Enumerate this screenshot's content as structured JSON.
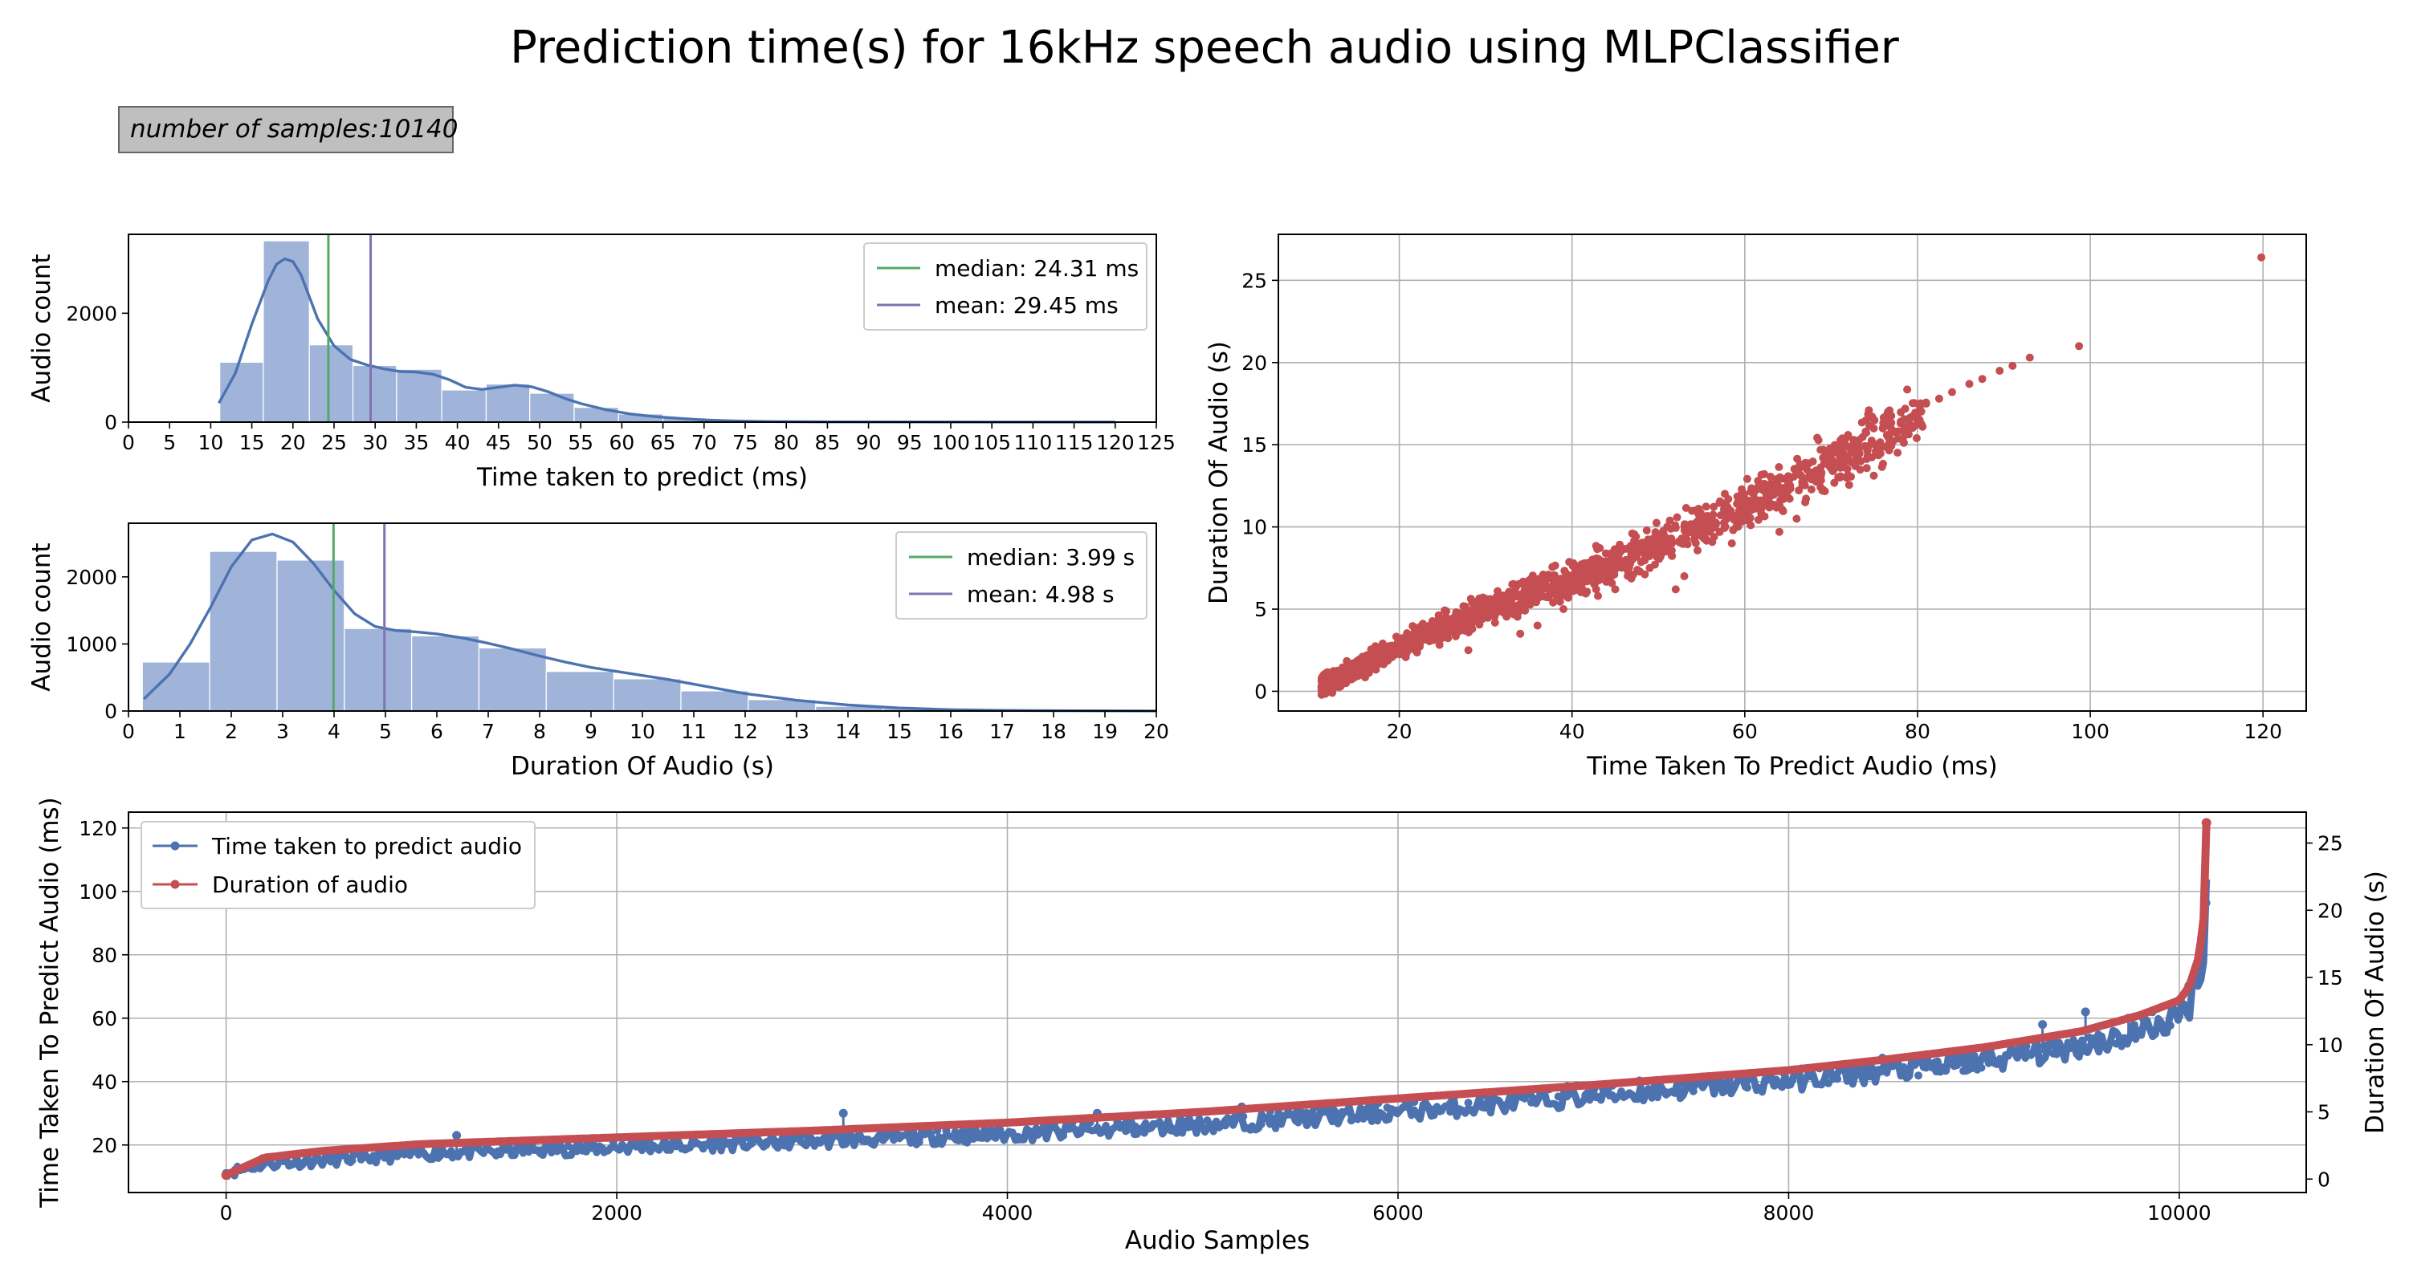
{
  "title": "Prediction time(s) for 16kHz speech audio using MLPClassifier",
  "note": "number of samples:10140",
  "colors": {
    "hist_bar": "#a0b4da",
    "kde": "#4c72b0",
    "median": "#55a868",
    "mean": "#8172b2",
    "scatter": "#c44e52",
    "line_time": "#4c72b0",
    "line_duration": "#c44e52",
    "grid": "#b0b0b0"
  },
  "chart_data": [
    {
      "type": "bar",
      "id": "hist-time",
      "xlabel": "Time taken to predict (ms)",
      "ylabel": "Audio count",
      "xlim": [
        0,
        125
      ],
      "ylim": [
        0,
        3450
      ],
      "xticks": [
        "0",
        "5",
        "10",
        "15",
        "20",
        "25",
        "30",
        "35",
        "40",
        "45",
        "50",
        "55",
        "60",
        "65",
        "70",
        "75",
        "80",
        "85",
        "90",
        "95",
        "100",
        "105",
        "110",
        "115",
        "120",
        "125"
      ],
      "yticks": [
        "0",
        "2000"
      ],
      "bin_edges": [
        11.1,
        16.4,
        22.0,
        27.3,
        32.6,
        38.1,
        43.5,
        48.8,
        54.2,
        59.6,
        65.0,
        70.3,
        75.7,
        81.1,
        86.5,
        91.9,
        97.3,
        102.7,
        108.1,
        113.5,
        118.9
      ],
      "counts": [
        1100,
        3330,
        1420,
        1040,
        970,
        590,
        700,
        530,
        270,
        150,
        80,
        40,
        25,
        15,
        10,
        5,
        3,
        2,
        1,
        1
      ],
      "kde": {
        "x": [
          11,
          13,
          15,
          17,
          18,
          19,
          20,
          21,
          22,
          23,
          25,
          27,
          29,
          31,
          33,
          35,
          37,
          39,
          41,
          43,
          45,
          47,
          49,
          51,
          53,
          55,
          58,
          61,
          64,
          67,
          70,
          74,
          78,
          85,
          95,
          105,
          120
        ],
        "y": [
          350,
          900,
          1800,
          2600,
          2900,
          3000,
          2950,
          2700,
          2300,
          1900,
          1400,
          1150,
          1050,
          980,
          930,
          920,
          880,
          780,
          640,
          600,
          640,
          680,
          650,
          560,
          440,
          340,
          230,
          150,
          100,
          70,
          40,
          20,
          10,
          5,
          3,
          2,
          1
        ]
      },
      "legend": [
        {
          "label": "median: 24.31 ms",
          "value": 24.31,
          "role": "median"
        },
        {
          "label": "mean: 29.45 ms",
          "value": 29.45,
          "role": "mean"
        }
      ],
      "legend_position": "upper right"
    },
    {
      "type": "bar",
      "id": "hist-duration",
      "xlabel": "Duration Of Audio (s)",
      "ylabel": "Audio count",
      "xlim": [
        0,
        20
      ],
      "ylim": [
        0,
        2800
      ],
      "xticks": [
        "0",
        "1",
        "2",
        "3",
        "4",
        "5",
        "6",
        "7",
        "8",
        "9",
        "10",
        "11",
        "12",
        "13",
        "14",
        "15",
        "16",
        "17",
        "18",
        "19",
        "20"
      ],
      "yticks": [
        "0",
        "1000",
        "2000"
      ],
      "bin_edges": [
        0.27,
        1.58,
        2.89,
        4.2,
        5.51,
        6.82,
        8.13,
        9.44,
        10.75,
        12.06,
        13.37,
        14.68,
        15.99,
        17.3,
        18.61,
        19.92
      ],
      "counts": [
        730,
        2380,
        2250,
        1230,
        1120,
        940,
        590,
        480,
        300,
        170,
        70,
        40,
        20,
        10,
        5
      ],
      "kde": {
        "x": [
          0.3,
          0.8,
          1.2,
          1.6,
          2.0,
          2.4,
          2.8,
          3.2,
          3.6,
          4.0,
          4.4,
          4.8,
          5.2,
          5.6,
          6.0,
          6.5,
          7.0,
          7.5,
          8.0,
          8.5,
          9.0,
          9.5,
          10.0,
          10.5,
          11.0,
          11.5,
          12.0,
          13.0,
          14.0,
          15.0,
          16.0,
          17.0,
          18.0,
          20.0
        ],
        "y": [
          180,
          550,
          1000,
          1550,
          2150,
          2550,
          2640,
          2520,
          2200,
          1800,
          1450,
          1260,
          1200,
          1180,
          1150,
          1090,
          1010,
          920,
          820,
          730,
          650,
          590,
          530,
          470,
          400,
          330,
          260,
          160,
          90,
          45,
          20,
          10,
          5,
          1
        ]
      },
      "legend": [
        {
          "label": "median: 3.99 s",
          "value": 3.99,
          "role": "median"
        },
        {
          "label": "mean: 4.98 s",
          "value": 4.98,
          "role": "mean"
        }
      ],
      "legend_position": "upper right"
    },
    {
      "type": "scatter",
      "id": "scatter-time-duration",
      "xlabel": "Time Taken To Predict Audio (ms)",
      "ylabel": "Duration Of Audio (s)",
      "xlim": [
        6,
        125
      ],
      "ylim": [
        -1.2,
        27.8
      ],
      "xticks": [
        "20",
        "40",
        "60",
        "80",
        "100",
        "120"
      ],
      "yticks": [
        "0",
        "5",
        "10",
        "15",
        "20",
        "25"
      ],
      "grid": true,
      "relationship": {
        "x": [
          11,
          20,
          30,
          40,
          50,
          60,
          70,
          80,
          90,
          100,
          120
        ],
        "y": [
          0.3,
          2.7,
          5.0,
          6.8,
          8.9,
          11.2,
          13.9,
          16.8,
          19.5,
          21.5,
          26.5
        ]
      },
      "outliers": [
        {
          "x": 119.8,
          "y": 26.4
        },
        {
          "x": 98.7,
          "y": 21.0
        },
        {
          "x": 93.0,
          "y": 20.3
        },
        {
          "x": 91.0,
          "y": 19.8
        },
        {
          "x": 89.5,
          "y": 19.5
        },
        {
          "x": 87.5,
          "y": 19.0
        },
        {
          "x": 86.0,
          "y": 18.7
        },
        {
          "x": 84.0,
          "y": 18.2
        },
        {
          "x": 82.5,
          "y": 17.8
        },
        {
          "x": 81.0,
          "y": 17.5
        },
        {
          "x": 79.0,
          "y": 16.5
        },
        {
          "x": 76.0,
          "y": 16.0
        },
        {
          "x": 74.0,
          "y": 15.8
        },
        {
          "x": 72.0,
          "y": 14.2
        },
        {
          "x": 71.0,
          "y": 13.0
        },
        {
          "x": 69.0,
          "y": 12.2
        },
        {
          "x": 67.0,
          "y": 11.5
        },
        {
          "x": 66.0,
          "y": 10.5
        },
        {
          "x": 64.0,
          "y": 9.7
        },
        {
          "x": 59.0,
          "y": 10.0
        },
        {
          "x": 58.5,
          "y": 9.0
        },
        {
          "x": 53.0,
          "y": 7.0
        },
        {
          "x": 52.0,
          "y": 6.2
        },
        {
          "x": 49.0,
          "y": 7.5
        },
        {
          "x": 45.0,
          "y": 6.2
        },
        {
          "x": 43.0,
          "y": 5.8
        },
        {
          "x": 39.0,
          "y": 5.0
        },
        {
          "x": 36.0,
          "y": 4.0
        },
        {
          "x": 34.0,
          "y": 3.5
        },
        {
          "x": 28.0,
          "y": 2.5
        }
      ]
    },
    {
      "type": "line",
      "id": "sorted-samples",
      "xlabel": "Audio Samples",
      "ylabel": "Time Taken To Predict Audio (ms)",
      "ylabel_right": "Duration Of Audio (s)",
      "xlim": [
        -500,
        10650
      ],
      "ylim": [
        5,
        125
      ],
      "ylim_right": [
        -1,
        27.3
      ],
      "xticks": [
        "0",
        "2000",
        "4000",
        "6000",
        "8000",
        "10000"
      ],
      "yticks": [
        "20",
        "40",
        "60",
        "80",
        "100",
        "120"
      ],
      "yticks_right": [
        "0",
        "5",
        "10",
        "15",
        "20",
        "25"
      ],
      "grid": true,
      "series": [
        {
          "name": "Time taken to predict audio",
          "x": [
            0,
            200,
            500,
            1000,
            2000,
            3000,
            4000,
            5000,
            6000,
            7000,
            8000,
            8500,
            9000,
            9500,
            9800,
            10000,
            10050,
            10100,
            10130,
            10139
          ],
          "y": [
            11,
            14,
            15,
            17,
            19,
            21,
            23,
            26,
            30,
            35,
            40,
            43,
            46,
            51,
            55,
            60,
            64,
            72,
            85,
            100
          ],
          "spikes": [
            {
              "x": 3160,
              "y": 30
            },
            {
              "x": 4460,
              "y": 30
            },
            {
              "x": 7050,
              "y": 38
            },
            {
              "x": 8920,
              "y": 48
            },
            {
              "x": 9300,
              "y": 58
            },
            {
              "x": 9740,
              "y": 60
            },
            {
              "x": 9520,
              "y": 62
            },
            {
              "x": 1180,
              "y": 23
            },
            {
              "x": 5200,
              "y": 32
            }
          ]
        },
        {
          "name": "Duration of audio",
          "x": [
            0,
            200,
            500,
            1000,
            2000,
            3000,
            4000,
            5000,
            6000,
            7000,
            8000,
            8500,
            9000,
            9500,
            9800,
            10000,
            10050,
            10100,
            10130,
            10139
          ],
          "y": [
            0.3,
            1.6,
            2.1,
            2.6,
            3.1,
            3.6,
            4.2,
            5.0,
            6.0,
            7.0,
            8.1,
            8.9,
            9.8,
            11.0,
            12.2,
            13.3,
            14.3,
            16.5,
            20.0,
            26.5
          ]
        }
      ],
      "legend_position": "upper left"
    }
  ]
}
